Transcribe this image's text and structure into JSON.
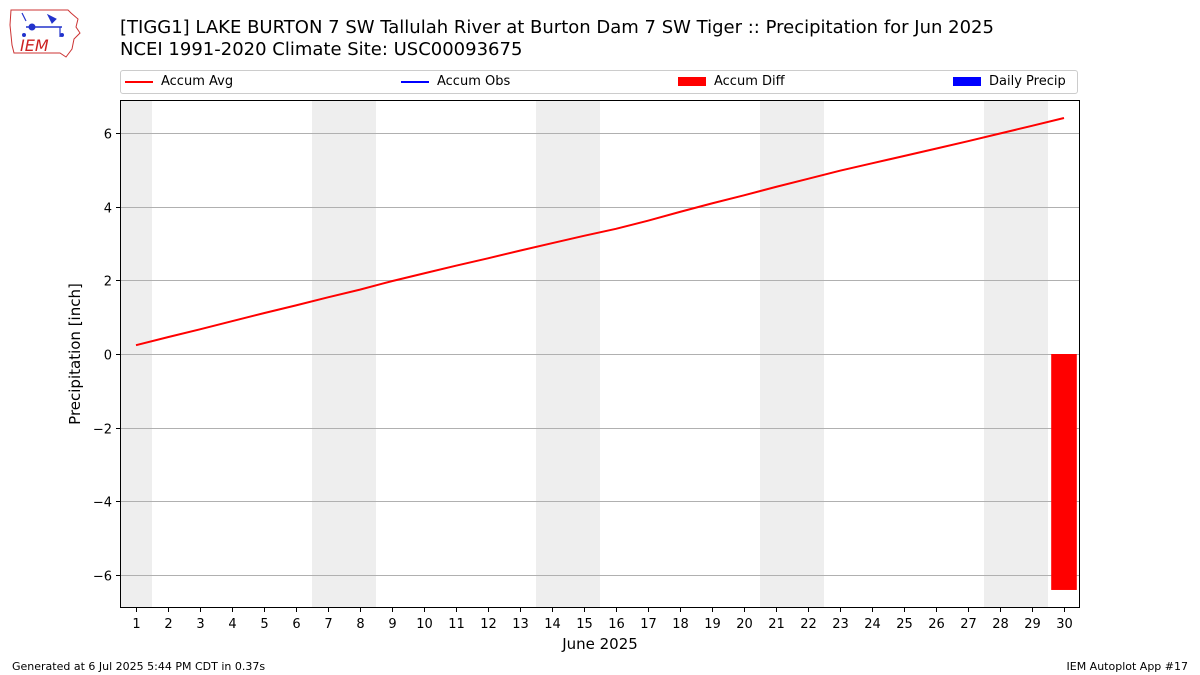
{
  "header": {
    "title_line1": "[TIGG1] LAKE BURTON 7 SW Tallulah River at Burton Dam 7 SW Tiger :: Precipitation for Jun 2025",
    "title_line2": "NCEI 1991-2020 Climate Site: USC00093675",
    "logo_text": "IEM"
  },
  "legend": {
    "accum_avg": "Accum Avg",
    "accum_obs": "Accum Obs",
    "accum_diff": "Accum Diff",
    "daily_precip": "Daily Precip"
  },
  "footer": {
    "generated": "Generated at 6 Jul 2025 5:44 PM CDT in 0.37s",
    "app": "IEM Autoplot App #17"
  },
  "colors": {
    "accum_avg": "#ff0000",
    "accum_obs": "#0000ff",
    "accum_diff": "#ff0000",
    "daily_precip": "#0000ff",
    "weekend_shade": "#eeeeee",
    "grid": "#b0b0b0"
  },
  "chart_data": {
    "type": "line",
    "xlabel": "June 2025",
    "ylabel": "Precipitation [inch]",
    "x": [
      1,
      2,
      3,
      4,
      5,
      6,
      7,
      8,
      9,
      10,
      11,
      12,
      13,
      14,
      15,
      16,
      17,
      18,
      19,
      20,
      21,
      22,
      23,
      24,
      25,
      26,
      27,
      28,
      29,
      30
    ],
    "xlim": [
      0.5,
      30.5
    ],
    "ylim": [
      -6.9,
      6.9
    ],
    "yticks": [
      -6,
      -4,
      -2,
      0,
      2,
      4,
      6
    ],
    "ytick_labels": [
      "−6",
      "−4",
      "−2",
      "0",
      "2",
      "4",
      "6"
    ],
    "grid": "y",
    "weekend_days": [
      1,
      7,
      8,
      14,
      15,
      21,
      22,
      28,
      29
    ],
    "series": [
      {
        "name": "Accum Avg",
        "kind": "line",
        "values": [
          0.24,
          0.46,
          0.67,
          0.89,
          1.11,
          1.32,
          1.54,
          1.75,
          1.98,
          2.19,
          2.4,
          2.6,
          2.81,
          3.01,
          3.21,
          3.4,
          3.62,
          3.86,
          4.09,
          4.31,
          4.54,
          4.76,
          4.98,
          5.18,
          5.38,
          5.58,
          5.78,
          5.99,
          6.2,
          6.41
        ]
      },
      {
        "name": "Accum Diff",
        "kind": "bar",
        "points": [
          {
            "x": 30,
            "y": -6.41
          }
        ]
      }
    ]
  }
}
